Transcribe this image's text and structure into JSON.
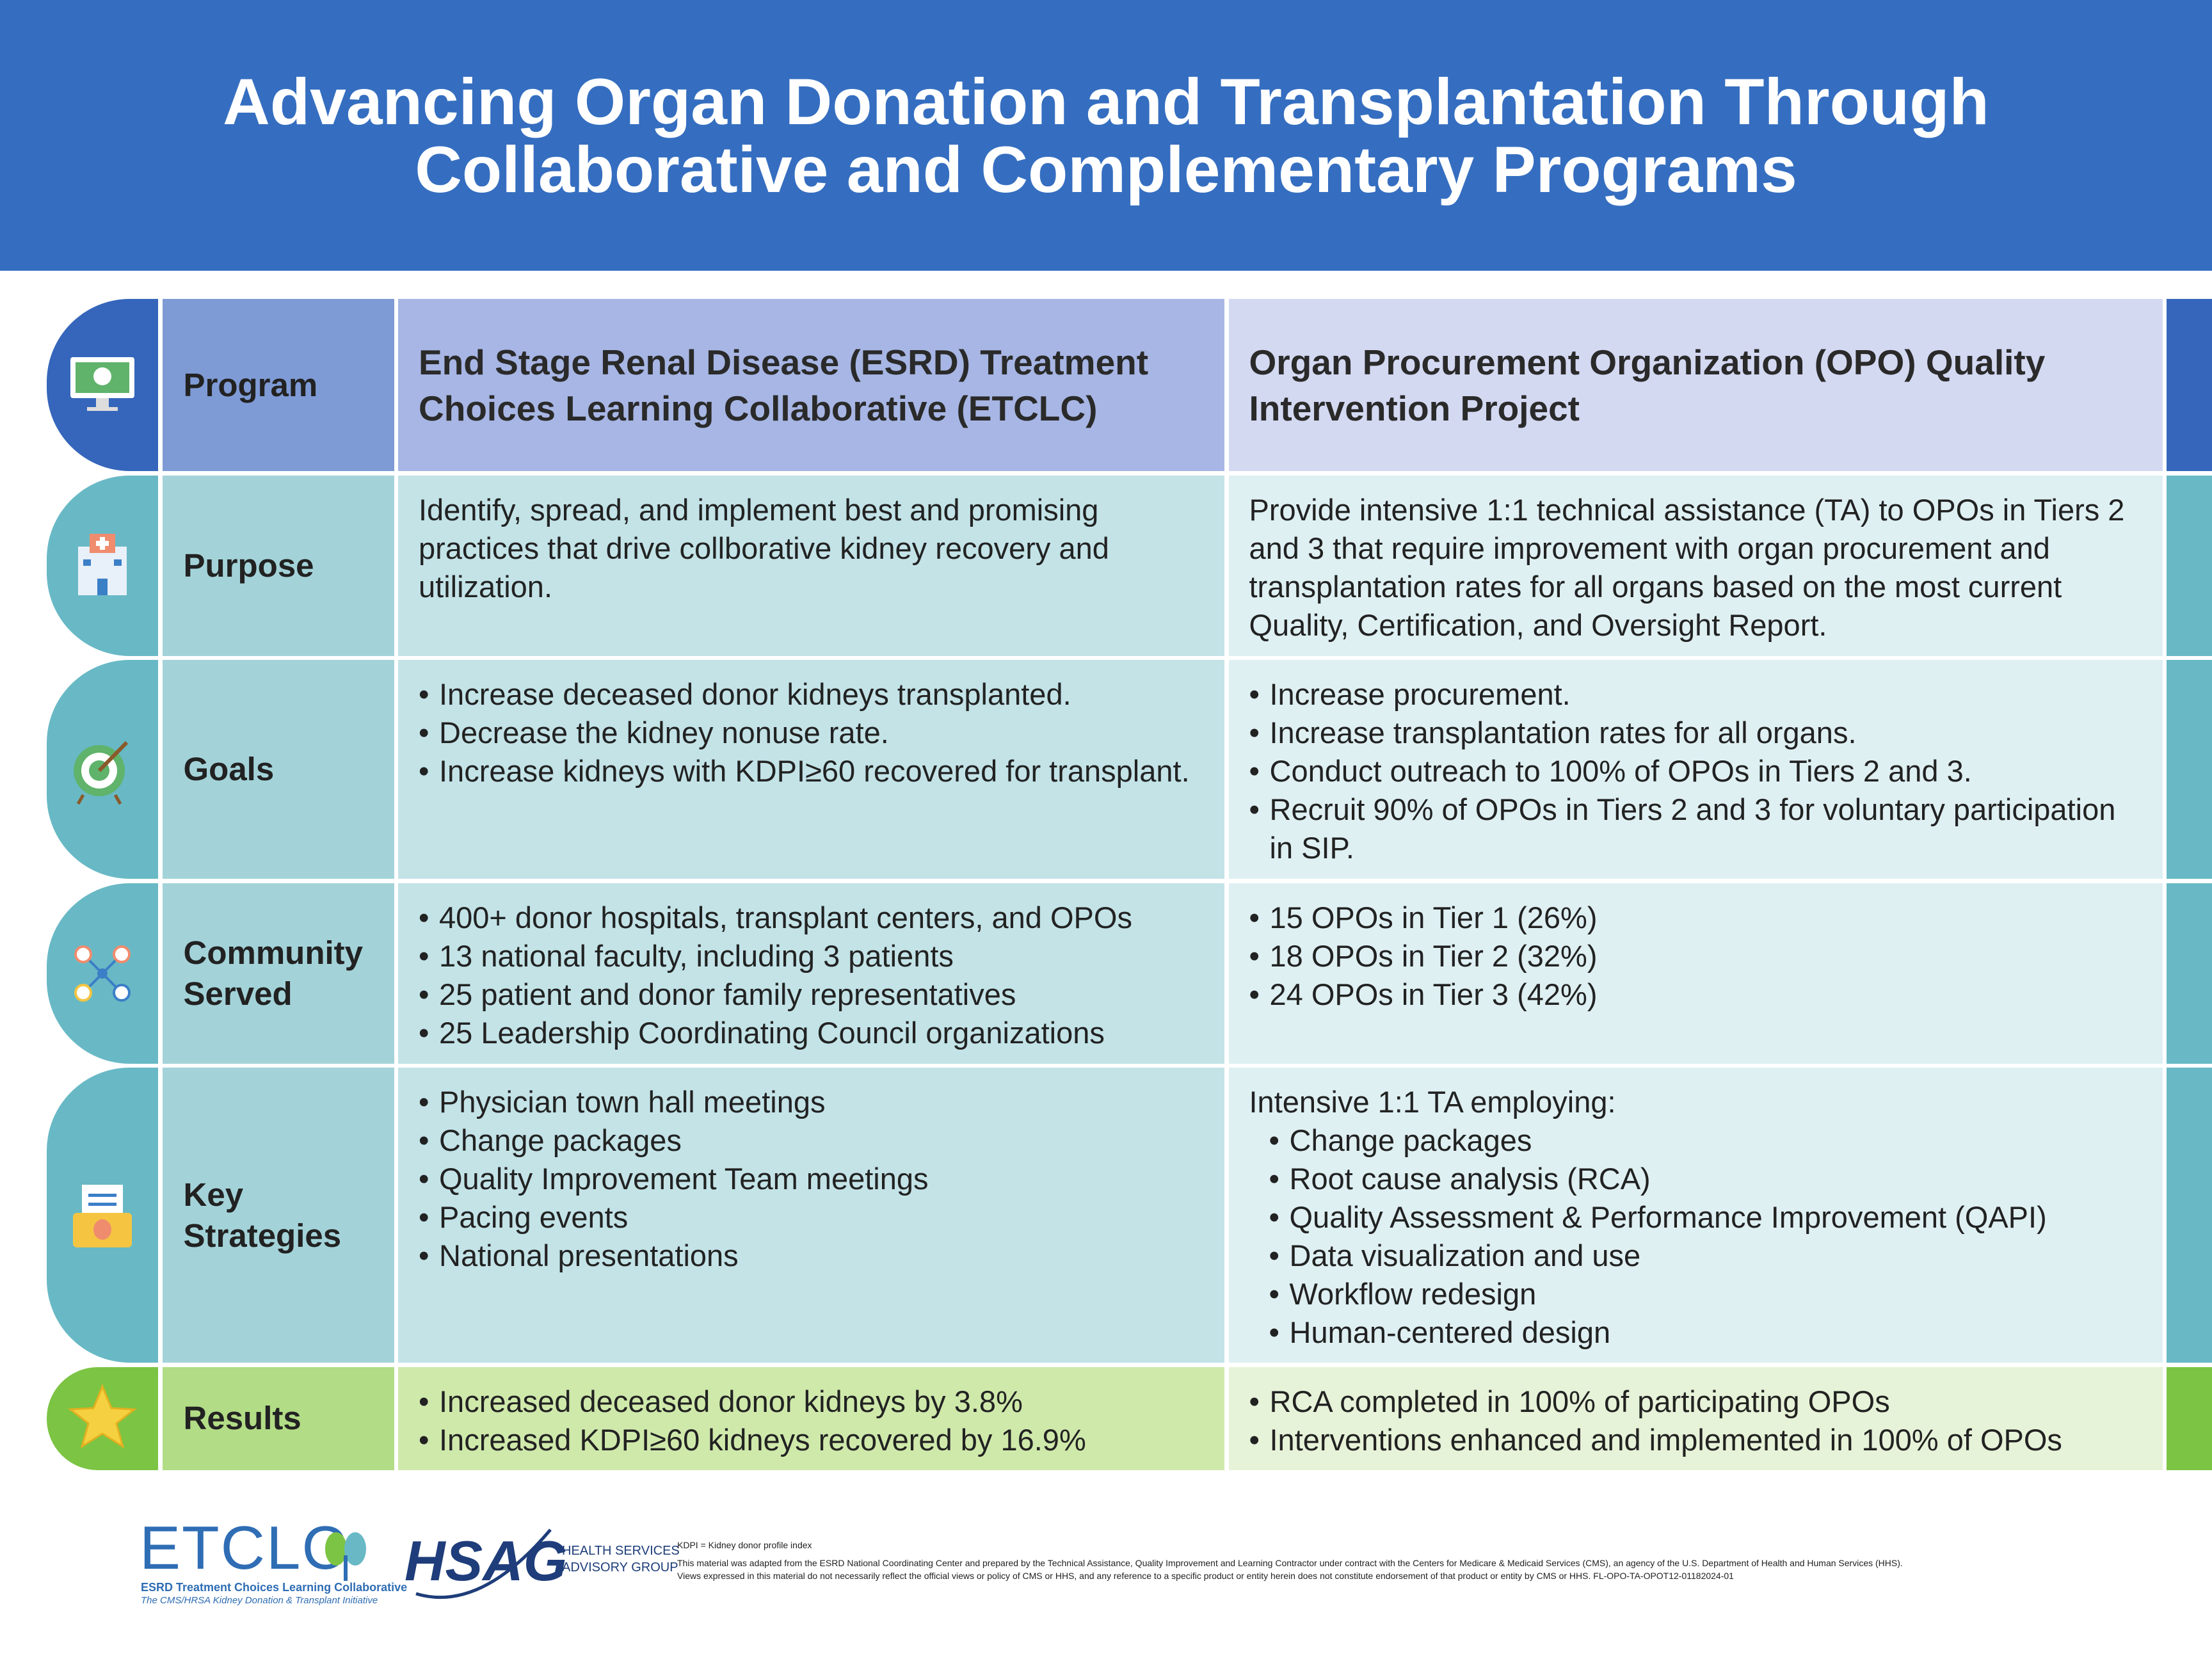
{
  "header": {
    "title_lines": [
      "Advancing Organ Donation and Transplantation Through",
      "Collaborative and Complementary Programs"
    ]
  },
  "table": {
    "header": {
      "label": "Program",
      "col1": "End Stage Renal Disease (ESRD) Treatment Choices Learning Collaborative (ETCLC)",
      "col2": "Organ Procurement Organization (OPO) Quality Intervention Project"
    },
    "rows": [
      {
        "label": "Purpose",
        "col1": {
          "text": "Identify, spread, and implement best and promising practices that drive collborative kidney recovery and utilization."
        },
        "col2": {
          "text": "Provide intensive 1:1 technical assistance (TA) to OPOs in Tiers 2 and 3 that require improvement with organ procurement and transplantation rates for all organs based on the most current Quality, Certification, and Oversight Report."
        }
      },
      {
        "label": "Goals",
        "col1": {
          "items": [
            "Increase deceased donor kidneys transplanted.",
            "Decrease the kidney nonuse rate.",
            "Increase kidneys with KDPI≥60 recovered for transplant."
          ]
        },
        "col2": {
          "items": [
            "Increase procurement.",
            "Increase transplantation rates for all organs.",
            "Conduct outreach to 100% of OPOs in Tiers 2 and 3.",
            "Recruit 90% of OPOs in Tiers 2 and 3 for voluntary participation in SIP."
          ]
        }
      },
      {
        "label": "Community Served",
        "col1": {
          "items": [
            "400+ donor hospitals, transplant centers, and OPOs",
            "13 national faculty, including 3 patients",
            "25 patient and donor family representatives",
            "25 Leadership Coordinating Council organizations"
          ]
        },
        "col2": {
          "items": [
            "15 OPOs in Tier 1 (26%)",
            "18 OPOs in Tier 2 (32%)",
            "24 OPOs in Tier 3 (42%)"
          ]
        }
      },
      {
        "label": "Key Strategies",
        "col1": {
          "items": [
            "Physician town hall meetings",
            "Change packages",
            "Quality Improvement Team meetings",
            "Pacing events",
            "National presentations"
          ]
        },
        "col2": {
          "intro": "Intensive 1:1 TA employing:",
          "items": [
            "Change packages",
            "Root cause analysis (RCA)",
            "Quality Assessment & Performance Improvement (QAPI)",
            "Data visualization and use",
            "Workflow redesign",
            "Human-centered design"
          ]
        }
      },
      {
        "label": "Results",
        "col1": {
          "items": [
            "Increased deceased donor kidneys by 3.8%",
            "Increased KDPI≥60 kidneys recovered by 16.9%"
          ]
        },
        "col2": {
          "items": [
            "RCA completed in 100% of participating OPOs",
            "Interventions enhanced and implemented in 100% of OPOs"
          ]
        }
      }
    ]
  },
  "footer": {
    "etclc": {
      "name": "ETCLC",
      "line1": "ESRD Treatment Choices Learning Collaborative",
      "line2": "The CMS/HRSA Kidney Donation & Transplant Initiative"
    },
    "hsag": {
      "name": "HSAG",
      "line1": "HEALTH SERVICES",
      "line2": "ADVISORY GROUP"
    },
    "note": "KDPI = Kidney donor profile index",
    "disclaimer": [
      "This material was adapted from the ESRD National Coordinating Center and prepared by the Technical Assistance, Quality Improvement and Learning Contractor under contract with the Centers for Medicare & Medicaid Services (CMS), an agency of the U.S. Department of Health and Human Services (HHS).",
      "Views expressed in this material do not necessarily reflect the official views or policy of CMS or HHS, and any reference to a specific product or entity herein does not constitute endorsement of that product or entity by CMS or HHS. FL-OPO-TA-OPOT12-01182024-01"
    ]
  }
}
